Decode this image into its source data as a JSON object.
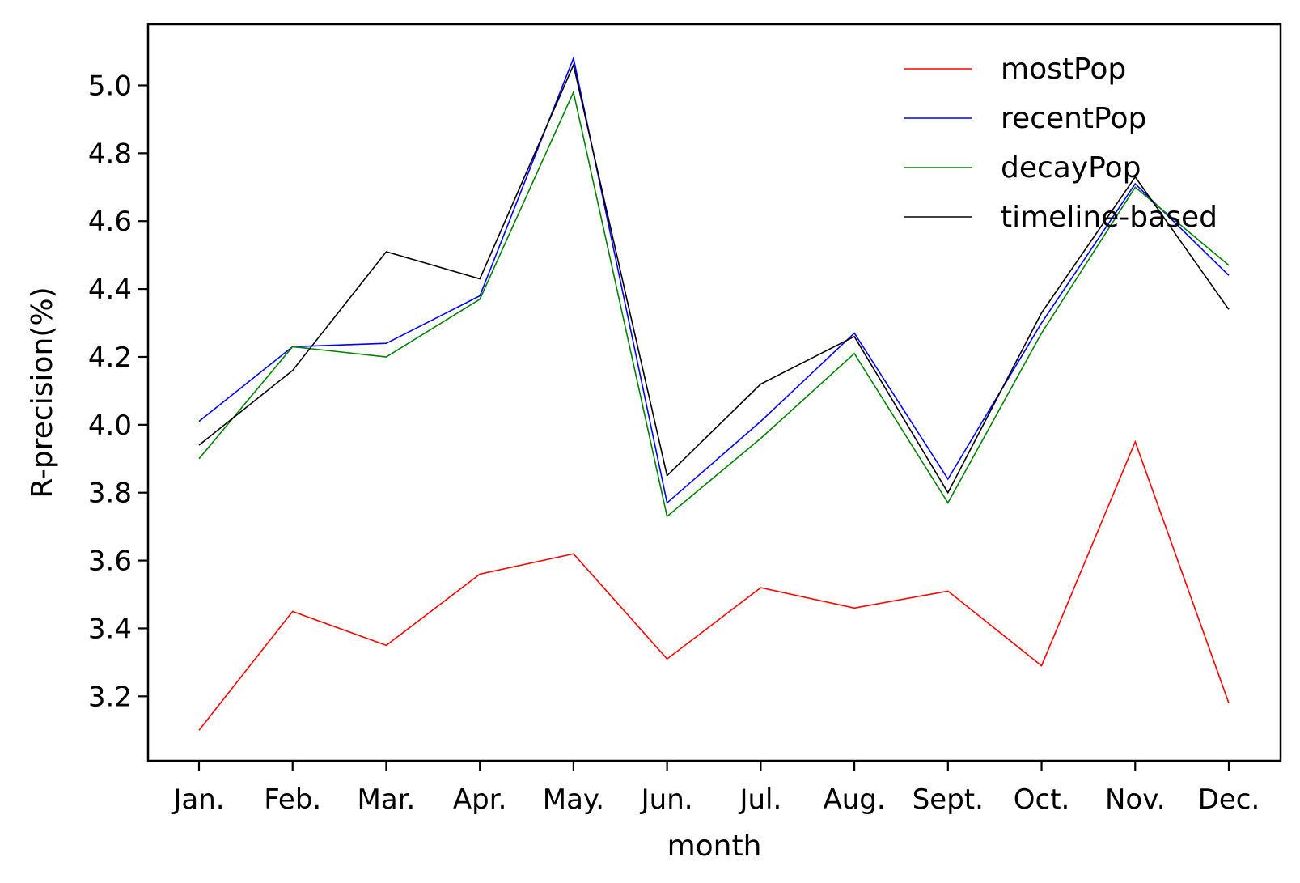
{
  "chart_data": {
    "type": "line",
    "xlabel": "month",
    "ylabel": "R-precision(%)",
    "categories": [
      "Jan.",
      "Feb.",
      "Mar.",
      "Apr.",
      "May.",
      "Jun.",
      "Jul.",
      "Aug.",
      "Sept.",
      "Oct.",
      "Nov.",
      "Dec."
    ],
    "ylim": [
      3.01,
      5.18
    ],
    "yticks": [
      "3.2",
      "3.4",
      "3.6",
      "3.8",
      "4.0",
      "4.2",
      "4.4",
      "4.6",
      "4.8",
      "5.0"
    ],
    "grid": false,
    "legend_position": "top-right",
    "series": [
      {
        "name": "mostPop",
        "color": "#ff0000",
        "values": [
          3.1,
          3.45,
          3.35,
          3.56,
          3.62,
          3.31,
          3.52,
          3.46,
          3.51,
          3.29,
          3.95,
          3.18
        ]
      },
      {
        "name": "recentPop",
        "color": "#0000ff",
        "values": [
          4.01,
          4.23,
          4.24,
          4.38,
          5.08,
          3.77,
          4.01,
          4.27,
          3.84,
          4.3,
          4.71,
          4.44
        ]
      },
      {
        "name": "decayPop",
        "color": "#008000",
        "values": [
          3.9,
          4.23,
          4.2,
          4.37,
          4.98,
          3.73,
          3.96,
          4.21,
          3.77,
          4.27,
          4.7,
          4.47
        ]
      },
      {
        "name": "timeline-based",
        "color": "#000000",
        "values": [
          3.94,
          4.16,
          4.51,
          4.43,
          5.06,
          3.85,
          4.12,
          4.26,
          3.8,
          4.33,
          4.73,
          4.34
        ]
      }
    ]
  }
}
